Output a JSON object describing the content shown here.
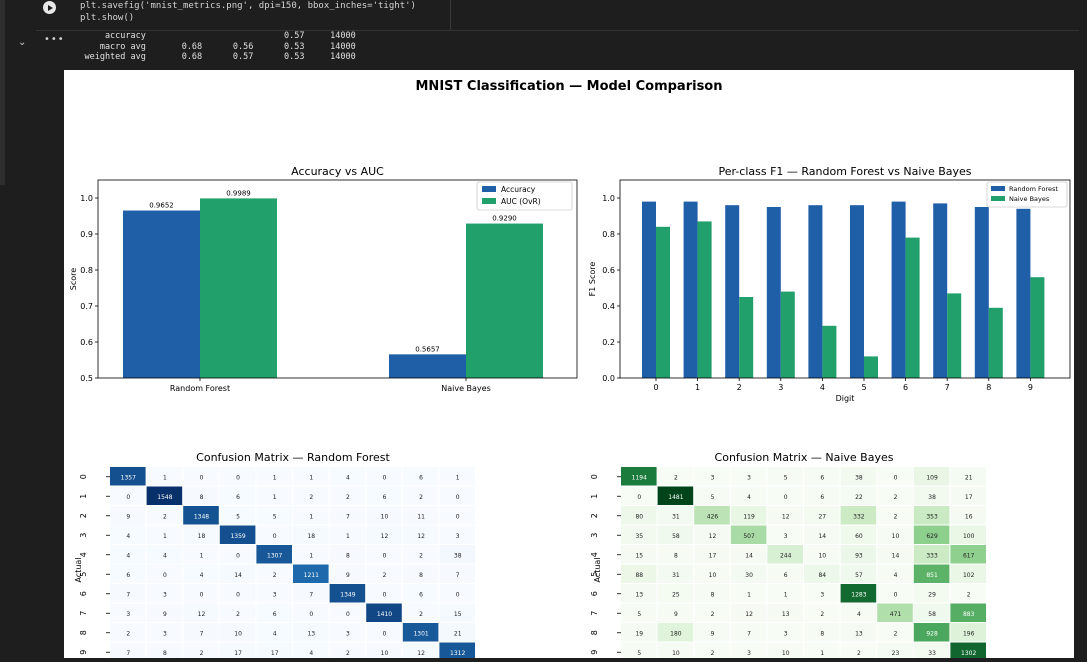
{
  "notebook": {
    "code_lines": [
      "plt.savefig('mnist_metrics.png', dpi=150, bbox_inches='tight')",
      "plt.show()"
    ],
    "output_text": "        accuracy                           0.57     14000\n       macro avg       0.68      0.56      0.53     14000\n    weighted avg       0.68      0.57      0.53     14000"
  },
  "figure": {
    "suptitle": "MNIST Classification — Model Comparison"
  },
  "chart_data": [
    {
      "type": "bar",
      "title": "Accuracy vs AUC",
      "xlabel": "",
      "ylabel": "Score",
      "ylim": [
        0.5,
        1.05
      ],
      "yticks": [
        "0.5",
        "0.6",
        "0.7",
        "0.8",
        "0.9",
        "1.0"
      ],
      "categories": [
        "Random Forest",
        "Naive Bayes"
      ],
      "legend_position": "top-right",
      "series": [
        {
          "name": "Accuracy",
          "values": [
            0.9652,
            0.5657
          ],
          "labels": [
            "0.9652",
            "0.5657"
          ],
          "color": "#1f5fa8"
        },
        {
          "name": "AUC (OvR)",
          "values": [
            0.9989,
            0.929
          ],
          "labels": [
            "0.9989",
            "0.9290"
          ],
          "color": "#22a06b"
        }
      ]
    },
    {
      "type": "bar",
      "title": "Per-class F1 — Random Forest vs Naive Bayes",
      "xlabel": "Digit",
      "ylabel": "F1 Score",
      "ylim": [
        0,
        1.1
      ],
      "yticks": [
        "0.0",
        "0.2",
        "0.4",
        "0.6",
        "0.8",
        "1.0"
      ],
      "categories": [
        "0",
        "1",
        "2",
        "3",
        "4",
        "5",
        "6",
        "7",
        "8",
        "9"
      ],
      "legend_position": "top-right",
      "series": [
        {
          "name": "Random Forest",
          "values": [
            0.98,
            0.98,
            0.96,
            0.95,
            0.96,
            0.96,
            0.98,
            0.97,
            0.95,
            0.94
          ],
          "color": "#1f5fa8"
        },
        {
          "name": "Naive Bayes",
          "values": [
            0.84,
            0.87,
            0.45,
            0.48,
            0.29,
            0.12,
            0.78,
            0.47,
            0.39,
            0.56
          ],
          "color": "#22a06b"
        }
      ]
    },
    {
      "type": "heatmap",
      "title": "Confusion Matrix — Random Forest",
      "ylabel": "Actual",
      "row_labels": [
        "0",
        "1",
        "2",
        "3",
        "4",
        "5",
        "6",
        "7",
        "8",
        "9"
      ],
      "colormap": "Blues",
      "values": [
        [
          1357,
          1,
          0,
          0,
          1,
          1,
          4,
          0,
          6,
          1
        ],
        [
          0,
          1548,
          8,
          6,
          1,
          2,
          2,
          6,
          2,
          0
        ],
        [
          9,
          2,
          1348,
          5,
          5,
          1,
          7,
          10,
          11,
          0
        ],
        [
          4,
          1,
          18,
          1359,
          0,
          18,
          1,
          12,
          12,
          3
        ],
        [
          4,
          4,
          1,
          0,
          1307,
          1,
          8,
          0,
          2,
          38
        ],
        [
          6,
          0,
          4,
          14,
          2,
          1211,
          9,
          2,
          8,
          7
        ],
        [
          7,
          3,
          0,
          0,
          3,
          7,
          1349,
          0,
          6,
          0
        ],
        [
          3,
          9,
          12,
          2,
          6,
          0,
          0,
          1410,
          2,
          15
        ],
        [
          2,
          3,
          7,
          10,
          4,
          13,
          3,
          0,
          1301,
          21
        ],
        [
          7,
          8,
          2,
          17,
          17,
          4,
          2,
          10,
          12,
          1312
        ]
      ]
    },
    {
      "type": "heatmap",
      "title": "Confusion Matrix — Naive Bayes",
      "ylabel": "Actual",
      "row_labels": [
        "0",
        "1",
        "2",
        "3",
        "4",
        "5",
        "6",
        "7",
        "8",
        "9"
      ],
      "colormap": "Greens",
      "values": [
        [
          1194,
          2,
          3,
          3,
          5,
          6,
          38,
          0,
          109,
          21
        ],
        [
          0,
          1481,
          5,
          4,
          0,
          6,
          22,
          2,
          38,
          17
        ],
        [
          80,
          31,
          426,
          119,
          12,
          27,
          332,
          2,
          353,
          16
        ],
        [
          35,
          58,
          12,
          507,
          3,
          14,
          60,
          10,
          629,
          100
        ],
        [
          15,
          8,
          17,
          14,
          244,
          10,
          93,
          14,
          333,
          617
        ],
        [
          88,
          31,
          10,
          30,
          6,
          84,
          57,
          4,
          851,
          102
        ],
        [
          13,
          25,
          8,
          1,
          1,
          3,
          1283,
          0,
          29,
          2
        ],
        [
          5,
          9,
          2,
          12,
          13,
          2,
          4,
          471,
          58,
          883
        ],
        [
          19,
          180,
          9,
          7,
          3,
          8,
          13,
          2,
          928,
          196
        ],
        [
          5,
          10,
          2,
          3,
          10,
          1,
          2,
          23,
          33,
          1302
        ]
      ]
    }
  ]
}
